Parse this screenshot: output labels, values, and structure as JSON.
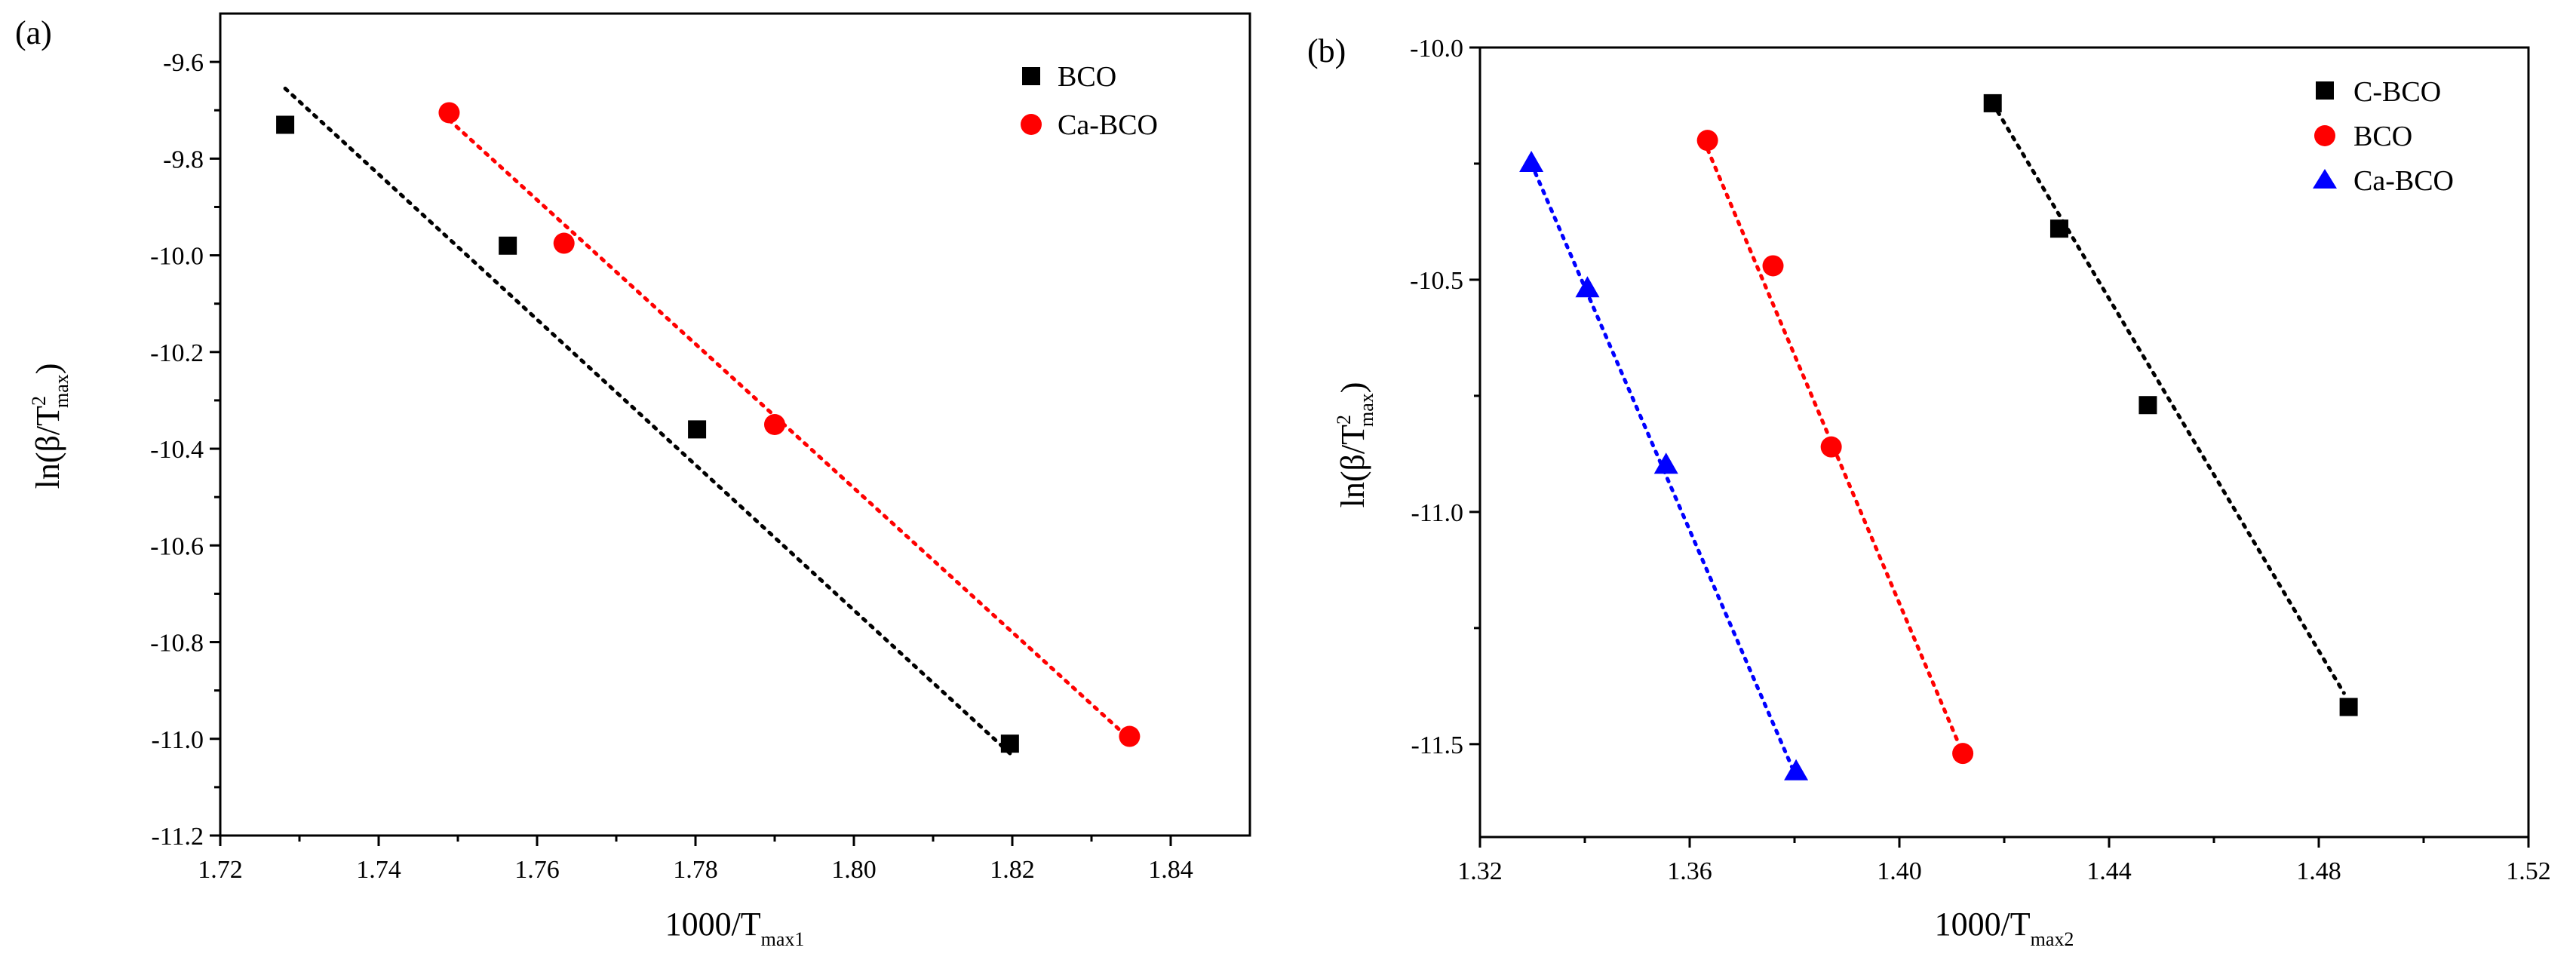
{
  "colors": {
    "black": "#000000",
    "red": "#ff0000",
    "blue": "#0000ff",
    "background": "#ffffff"
  },
  "chart_data": [
    {
      "type": "scatter",
      "panel_label": "(a)",
      "xlabel": {
        "main": "1000/T",
        "sub": "max1"
      },
      "ylabel": {
        "pre": "ln(β/T",
        "sup": "2",
        "sub": "max",
        "post": ")"
      },
      "xlim": [
        1.72,
        1.85
      ],
      "ylim": [
        -11.2,
        -9.5
      ],
      "xticks": [
        1.72,
        1.74,
        1.76,
        1.78,
        1.8,
        1.82,
        1.84
      ],
      "yticks": [
        -11.2,
        -11.0,
        -10.8,
        -10.6,
        -10.4,
        -10.2,
        -10.0,
        -9.8,
        -9.6
      ],
      "xtick_labels": [
        "1.72",
        "1.74",
        "1.76",
        "1.78",
        "1.80",
        "1.82",
        "1.84"
      ],
      "ytick_labels": [
        "-11.2",
        "-11.0",
        "-10.8",
        "-10.6",
        "-10.4",
        "-10.2",
        "-10.0",
        "-9.8",
        "-9.6"
      ],
      "legend_position": "top-right",
      "series": [
        {
          "name": "BCO",
          "marker": "square",
          "color": "#000000",
          "x": [
            1.7282,
            1.7563,
            1.7802,
            1.8197
          ],
          "y": [
            -9.73,
            -9.98,
            -10.36,
            -11.01
          ],
          "fit": {
            "x": [
              1.7282,
              1.8197
            ],
            "y": [
              -9.655,
              -11.03
            ]
          }
        },
        {
          "name": "Ca-BCO",
          "marker": "circle",
          "color": "#ff0000",
          "x": [
            1.7489,
            1.7634,
            1.79,
            1.8348
          ],
          "y": [
            -9.705,
            -9.975,
            -10.35,
            -10.995
          ],
          "fit": {
            "x": [
              1.7489,
              1.8348
            ],
            "y": [
              -9.72,
              -11.0
            ]
          }
        }
      ]
    },
    {
      "type": "scatter",
      "panel_label": "(b)",
      "xlabel": {
        "main": "1000/T",
        "sub": "max2"
      },
      "ylabel": {
        "pre": "ln(β/T",
        "sup": "2",
        "sub": "max",
        "post": ")"
      },
      "xlim": [
        1.32,
        1.52
      ],
      "ylim": [
        -11.7,
        -10.0
      ],
      "xticks": [
        1.32,
        1.36,
        1.4,
        1.44,
        1.48,
        1.52
      ],
      "yticks": [
        -11.5,
        -11.0,
        -10.5,
        -10.0
      ],
      "xtick_labels": [
        "1.32",
        "1.36",
        "1.40",
        "1.44",
        "1.48",
        "1.52"
      ],
      "ytick_labels": [
        "-11.5",
        "-11.0",
        "-10.5",
        "-10.0"
      ],
      "legend_position": "top-right",
      "series": [
        {
          "name": "C-BCO",
          "marker": "square",
          "color": "#000000",
          "x": [
            1.4178,
            1.4305,
            1.4474,
            1.4857
          ],
          "y": [
            -10.12,
            -10.39,
            -10.77,
            -11.42
          ],
          "fit": {
            "x": [
              1.4178,
              1.4848
            ],
            "y": [
              -10.12,
              -11.39
            ]
          }
        },
        {
          "name": "BCO",
          "marker": "circle",
          "color": "#ff0000",
          "x": [
            1.3634,
            1.3759,
            1.387,
            1.4121
          ],
          "y": [
            -10.2,
            -10.47,
            -10.86,
            -11.52
          ],
          "fit": {
            "x": [
              1.3627,
              1.4121
            ],
            "y": [
              -10.2,
              -11.52
            ]
          }
        },
        {
          "name": "Ca-BCO",
          "marker": "triangle",
          "color": "#0000ff",
          "x": [
            1.3298,
            1.3405,
            1.3555,
            1.3803
          ],
          "y": [
            -10.25,
            -10.52,
            -10.9,
            -11.56
          ],
          "fit": {
            "x": [
              1.3298,
              1.3803
            ],
            "y": [
              -10.25,
              -11.57
            ]
          }
        }
      ]
    }
  ]
}
